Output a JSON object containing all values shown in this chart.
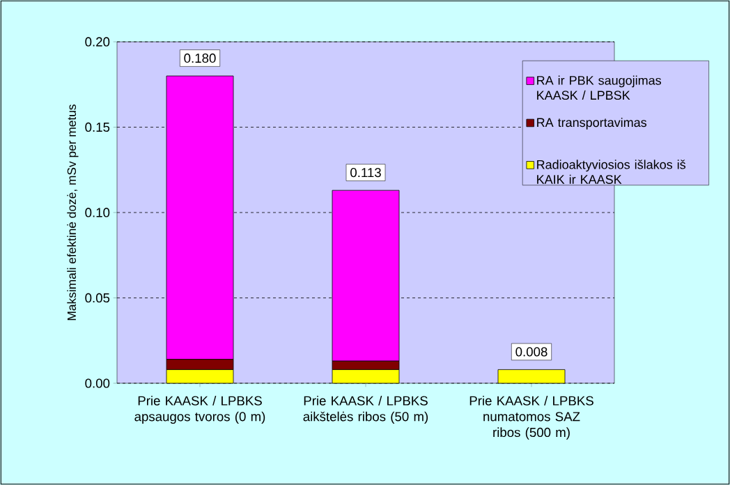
{
  "chart_data": {
    "type": "bar",
    "stacked": true,
    "ylabel": "Maksimali efektinė dozė, mSv per metus",
    "categories": [
      "Prie KAASK / LPBKS apsaugos tvoros (0 m)",
      "Prie KAASK / LPBKS aikštelės ribos (50 m)",
      "Prie KAASK / LPBKS numatomos SAZ ribos (500 m)"
    ],
    "series": [
      {
        "name": "Radioaktyviosios išlakos iš KAIK ir KAASK",
        "color": "#ffff00",
        "values": [
          0.008,
          0.008,
          0.008
        ]
      },
      {
        "name": "RA transportavimas",
        "color": "#800000",
        "values": [
          0.006,
          0.005,
          null
        ]
      },
      {
        "name": "RA ir PBK saugojimas KAASK / LPBSK",
        "color": "#ff00ff",
        "values": [
          0.166,
          0.1,
          null
        ]
      }
    ],
    "totals": [
      "0.180",
      "0.113",
      "0.008"
    ],
    "ylim": [
      0,
      0.2
    ],
    "yticks": [
      {
        "value": 0,
        "label": "0.00"
      },
      {
        "value": 0.05,
        "label": "0.05"
      },
      {
        "value": 0.1,
        "label": "0.10"
      },
      {
        "value": 0.15,
        "label": "0.15"
      },
      {
        "value": 0.2,
        "label": "0.20"
      }
    ],
    "grid": "y",
    "legend": "right"
  }
}
